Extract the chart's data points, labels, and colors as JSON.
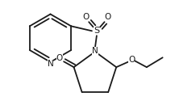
{
  "background": "#ffffff",
  "line_color": "#1a1a1a",
  "lw": 1.3,
  "fig_width": 2.17,
  "fig_height": 1.3,
  "dpi": 100,
  "xlim": [
    0,
    217
  ],
  "ylim": [
    0,
    130
  ]
}
